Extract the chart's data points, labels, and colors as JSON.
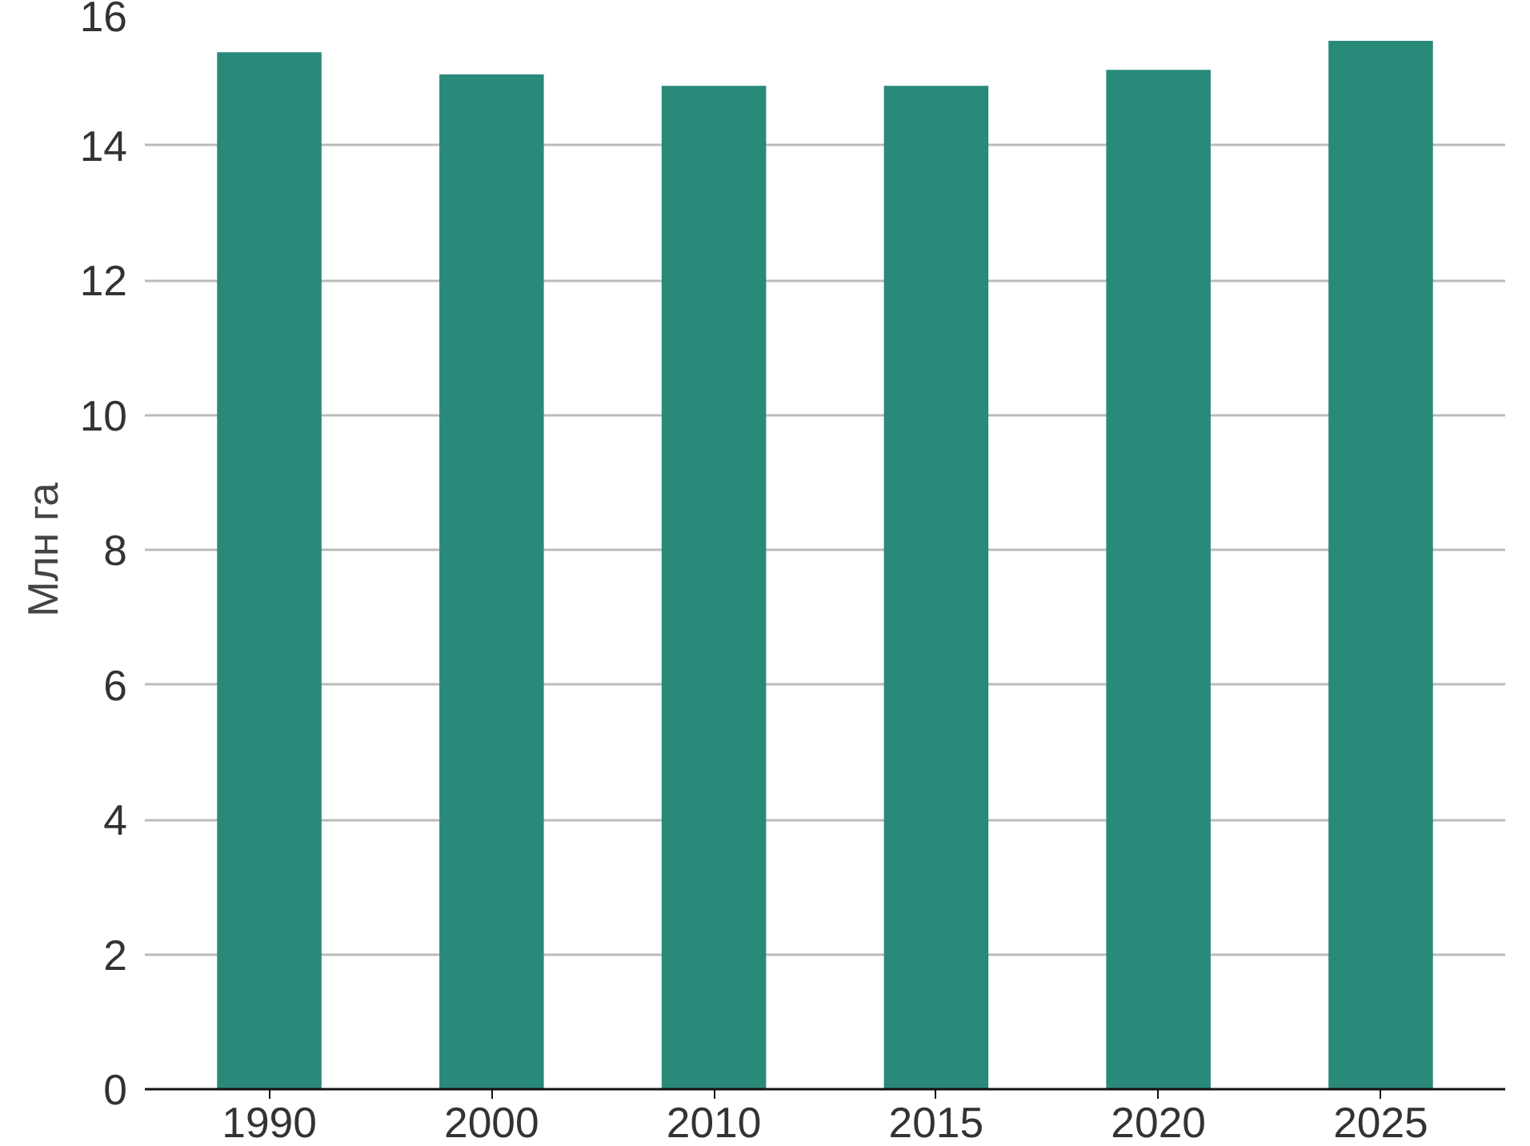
{
  "chart_data": {
    "type": "bar",
    "ylabel": "Млн га",
    "categories": [
      "1990",
      "2000",
      "2010",
      "2015",
      "2020",
      "2025"
    ],
    "values": [
      15.38,
      15.05,
      14.88,
      14.88,
      15.12,
      15.55
    ],
    "color": "#2a8a7a",
    "ylim": [
      0,
      16
    ],
    "yticks": [
      0,
      2,
      4,
      6,
      8,
      10,
      12,
      14,
      16
    ],
    "grid": "y"
  }
}
